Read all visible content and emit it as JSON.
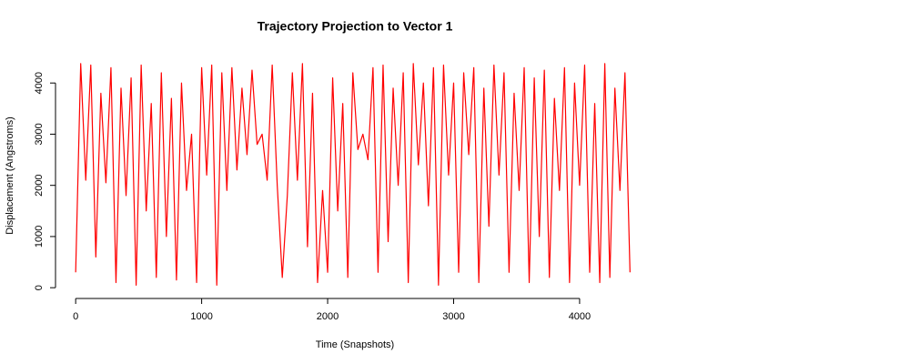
{
  "chart_data": {
    "type": "line",
    "title": "Trajectory Projection to Vector 1",
    "x_label": "Time (Snapshots)",
    "y_label": "Displacement (Angstroms)",
    "x": [
      0,
      40,
      80,
      120,
      160,
      200,
      240,
      280,
      320,
      360,
      400,
      440,
      480,
      520,
      560,
      600,
      640,
      680,
      720,
      760,
      800,
      840,
      880,
      920,
      960,
      1000,
      1040,
      1080,
      1120,
      1160,
      1200,
      1240,
      1280,
      1320,
      1360,
      1400,
      1440,
      1480,
      1520,
      1560,
      1600,
      1640,
      1680,
      1720,
      1760,
      1800,
      1840,
      1880,
      1920,
      1960,
      2000,
      2040,
      2080,
      2120,
      2160,
      2200,
      2240,
      2280,
      2320,
      2360,
      2400,
      2440,
      2480,
      2520,
      2560,
      2600,
      2640,
      2680,
      2720,
      2760,
      2800,
      2840,
      2880,
      2920,
      2960,
      3000,
      3040,
      3080,
      3120,
      3160,
      3200,
      3240,
      3280,
      3320,
      3360,
      3400,
      3440,
      3480,
      3520,
      3560,
      3600,
      3640,
      3680,
      3720,
      3760,
      3800,
      3840,
      3880,
      3920,
      3960,
      4000,
      4040,
      4080,
      4120,
      4160,
      4200,
      4240,
      4280,
      4320,
      4360,
      4400
    ],
    "series": [
      {
        "name": "Vector 1",
        "color": "#ff0000",
        "values": [
          300,
          4380,
          2100,
          4350,
          600,
          3800,
          2050,
          4300,
          100,
          3900,
          1800,
          4100,
          50,
          4350,
          1500,
          3600,
          200,
          4200,
          1000,
          3700,
          150,
          4000,
          1900,
          3000,
          100,
          4300,
          2200,
          4350,
          50,
          4200,
          1900,
          4300,
          2300,
          3900,
          2600,
          4250,
          2800,
          3000,
          2100,
          4350,
          2000,
          200,
          1800,
          4200,
          2100,
          4380,
          800,
          3800,
          100,
          1900,
          300,
          4100,
          1500,
          3600,
          200,
          4200,
          2700,
          3000,
          2500,
          4300,
          300,
          4350,
          900,
          3900,
          2000,
          4200,
          100,
          4380,
          2400,
          4000,
          1600,
          4300,
          50,
          4350,
          2200,
          4000,
          300,
          4200,
          2600,
          4300,
          100,
          3900,
          1200,
          4350,
          2200,
          4200,
          300,
          3800,
          1900,
          4300,
          100,
          4100,
          1000,
          4250,
          200,
          3700,
          1900,
          4300,
          100,
          4000,
          2000,
          4350,
          300,
          3600,
          100,
          4380,
          200,
          3900,
          1900,
          4200,
          300
        ]
      }
    ],
    "xlim": [
      -160,
      4600
    ],
    "ylim": [
      -175,
      4555
    ],
    "xticks": [
      0,
      1000,
      2000,
      3000,
      4000
    ],
    "yticks": [
      0,
      1000,
      2000,
      3000,
      4000
    ]
  }
}
